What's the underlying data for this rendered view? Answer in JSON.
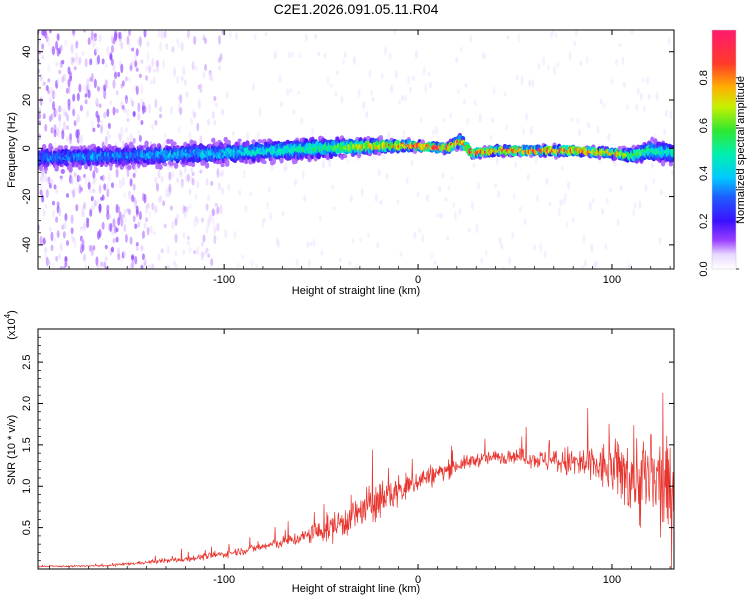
{
  "title": "C2E1.2026.091.05.11.R04",
  "colors": {
    "series": "#e8342e",
    "frame": "#000000"
  },
  "chart_data": [
    {
      "type": "heatmap",
      "xlabel": "Height of straight line (km)",
      "ylabel": "Frequency (Hz)",
      "xlim": [
        -196,
        132
      ],
      "ylim": [
        -50,
        49
      ],
      "x_ticks": [
        -100,
        0,
        100
      ],
      "x_tick_labels": [
        "-100",
        "0",
        "100"
      ],
      "y_ticks": [
        -40,
        -20,
        0,
        20,
        40
      ],
      "y_tick_labels": [
        "-40",
        "-20",
        "0",
        "20",
        "40"
      ],
      "colorbar": {
        "label": "Normalized spectral amplitude",
        "range": [
          0,
          1
        ],
        "ticks": [
          0.0,
          0.2,
          0.4,
          0.6,
          0.8
        ],
        "tick_labels": [
          "0.0",
          "0.2",
          "0.4",
          "0.6",
          "0.8"
        ]
      },
      "ridge": {
        "x": [
          -196,
          -150,
          -100,
          -50,
          -20,
          0,
          15,
          22,
          28,
          40,
          60,
          80,
          100,
          110,
          120,
          132
        ],
        "freq_hz": [
          -4,
          -3,
          -2,
          0,
          1,
          1,
          0,
          3,
          -2,
          -1,
          -1,
          -1,
          -2,
          -3,
          -1,
          -2
        ],
        "peak_amplitude": [
          0.35,
          0.38,
          0.45,
          0.55,
          0.85,
          0.95,
          0.95,
          0.9,
          0.95,
          0.95,
          0.95,
          0.9,
          0.85,
          0.7,
          0.55,
          0.5
        ],
        "band_halfwidth_hz": [
          5,
          5,
          5,
          5,
          3,
          2,
          2,
          3,
          2,
          2,
          2,
          2,
          2,
          3,
          5,
          5
        ]
      }
    },
    {
      "type": "line",
      "xlabel": "Height of straight line (km)",
      "ylabel": "SNR (10 * v/v)",
      "y_scale_label": "(x10",
      "y_scale_exp": "4",
      "y_scale_close": ")",
      "xlim": [
        -196,
        132
      ],
      "ylim": [
        0,
        2.9
      ],
      "x_ticks": [
        -100,
        0,
        100
      ],
      "x_tick_labels": [
        "-100",
        "0",
        "100"
      ],
      "y_ticks": [
        0.5,
        1.0,
        1.5,
        2.0,
        2.5
      ],
      "y_tick_labels": [
        "0.5",
        "1.0",
        "1.5",
        "2.0",
        "2.5"
      ],
      "series": [
        {
          "name": "SNR",
          "envelope_x": [
            -196,
            -160,
            -140,
            -120,
            -100,
            -80,
            -60,
            -45,
            -35,
            -25,
            -15,
            -5,
            0,
            10,
            20,
            30,
            40,
            50,
            60,
            70,
            80,
            90,
            95,
            100,
            105,
            110,
            115,
            120,
            125,
            132
          ],
          "envelope_y": [
            0.03,
            0.04,
            0.08,
            0.12,
            0.18,
            0.27,
            0.38,
            0.5,
            0.62,
            0.75,
            0.9,
            0.98,
            1.08,
            1.15,
            1.25,
            1.32,
            1.35,
            1.37,
            1.33,
            1.3,
            1.28,
            1.25,
            1.23,
            1.2,
            1.18,
            1.15,
            1.1,
            1.05,
            1.0,
            0.9
          ],
          "noise_y": [
            0.01,
            0.015,
            0.03,
            0.05,
            0.06,
            0.08,
            0.12,
            0.25,
            0.3,
            0.35,
            0.3,
            0.25,
            0.2,
            0.18,
            0.12,
            0.12,
            0.12,
            0.12,
            0.15,
            0.2,
            0.3,
            0.35,
            0.4,
            0.45,
            0.55,
            0.75,
            0.85,
            0.9,
            0.85,
            0.8
          ]
        }
      ]
    }
  ]
}
